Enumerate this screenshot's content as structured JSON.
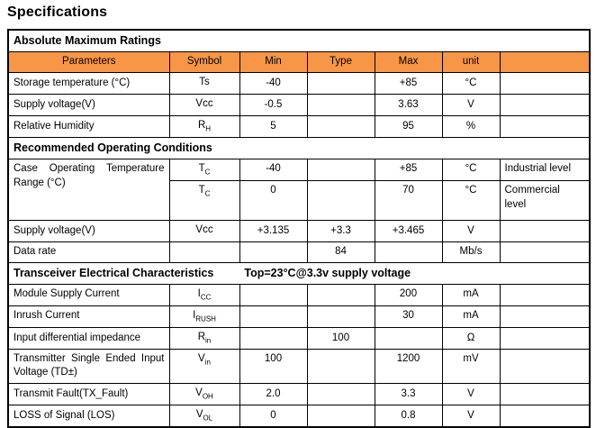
{
  "title": "Specifications",
  "colors": {
    "header_bg": "#F79646",
    "border": "#000000"
  },
  "table": {
    "cols": {
      "param": "Parameters",
      "sym": "Symbol",
      "min": "Min",
      "typ": "Type",
      "max": "Max",
      "unit": "unit",
      "extra": ""
    },
    "s1": {
      "title": "Absolute Maximum Ratings"
    },
    "s2": {
      "title": "Recommended Operating Conditions"
    },
    "s3": {
      "title": "Transceiver Electrical Characteristics",
      "note": "Top=23°C@3.3v supply voltage"
    },
    "r": {
      "storage": {
        "param": "Storage temperature (°C)",
        "sym": "Ts",
        "sub": "",
        "min": "-40",
        "typ": "",
        "max": "+85",
        "unit": "°C",
        "note": ""
      },
      "vcc1": {
        "param": "Supply voltage(V)",
        "sym": "Vcc",
        "sub": "",
        "min": "-0.5",
        "typ": "",
        "max": "3.63",
        "unit": "V",
        "note": ""
      },
      "rh": {
        "param": "Relative Humidity",
        "sym": "R",
        "sub": "H",
        "min": "5",
        "typ": "",
        "max": "95",
        "unit": "%",
        "note": ""
      },
      "tc1": {
        "param": "Case Operating Temperature Range (°C)",
        "sym": "T",
        "sub": "C",
        "min": "-40",
        "typ": "",
        "max": "+85",
        "unit": "°C",
        "note": "Industrial level"
      },
      "tc2": {
        "sym": "T",
        "sub": "C",
        "min": "0",
        "typ": "",
        "max": "70",
        "unit": "°C",
        "note": "Commercial level"
      },
      "vcc2": {
        "param": "Supply voltage(V)",
        "sym": "Vcc",
        "sub": "",
        "min": "+3.135",
        "typ": "+3.3",
        "max": "+3.465",
        "unit": "V",
        "note": ""
      },
      "rate": {
        "param": "Data rate",
        "sym": "",
        "sub": "",
        "min": "",
        "typ": "84",
        "max": "",
        "unit": "Mb/s",
        "note": ""
      },
      "icc": {
        "param": "Module Supply Current",
        "sym": "I",
        "sub": "CC",
        "min": "",
        "typ": "",
        "max": "200",
        "unit": "mA",
        "note": ""
      },
      "irush": {
        "param": "Inrush Current",
        "sym": "I",
        "sub": "RUSH",
        "min": "",
        "typ": "",
        "max": "30",
        "unit": "mA",
        "note": ""
      },
      "rin": {
        "param": "Input differential impedance",
        "sym": "R",
        "sub": "in",
        "min": "",
        "typ": "100",
        "max": "",
        "unit": "Ω",
        "note": ""
      },
      "vin": {
        "param": "Transmitter Single Ended Input Voltage (TD±)",
        "sym": "V",
        "sub": "in",
        "min": "100",
        "typ": "",
        "max": "1200",
        "unit": "mV",
        "note": ""
      },
      "voh": {
        "param": "Transmit Fault(TX_Fault)",
        "sym": "V",
        "sub": "OH",
        "min": "2.0",
        "typ": "",
        "max": "3.3",
        "unit": "V",
        "note": ""
      },
      "vol": {
        "param": "LOSS of Signal (LOS)",
        "sym": "V",
        "sub": "OL",
        "min": "0",
        "typ": "",
        "max": "0.8",
        "unit": "V",
        "note": ""
      }
    }
  }
}
